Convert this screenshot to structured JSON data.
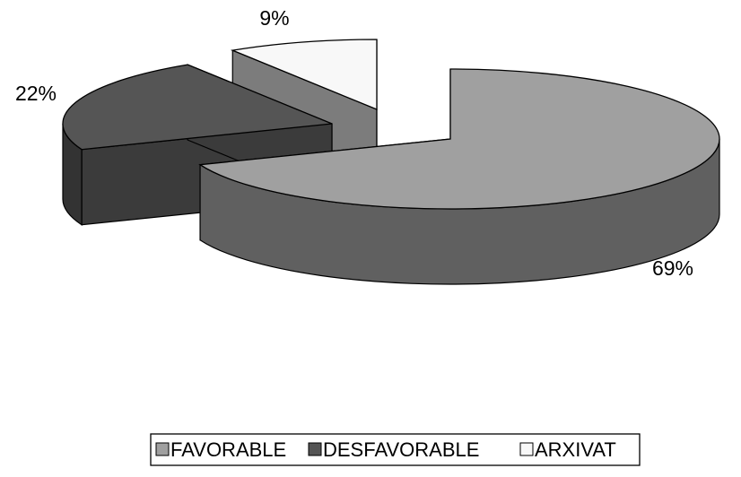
{
  "chart_data": {
    "type": "pie",
    "style": "3d-exploded",
    "categories": [
      "FAVORABLE",
      "DESFAVORABLE",
      "ARXIVAT"
    ],
    "values": [
      69,
      22,
      9
    ],
    "labels": [
      "69%",
      "22%",
      "9%"
    ],
    "colors": {
      "FAVORABLE": "#a0a0a0",
      "DESFAVORABLE": "#555555",
      "ARXIVAT": "#f8f8f8"
    },
    "legend": {
      "placement": "bottom",
      "items": [
        "FAVORABLE",
        "DESFAVORABLE",
        "ARXIVAT"
      ]
    }
  }
}
